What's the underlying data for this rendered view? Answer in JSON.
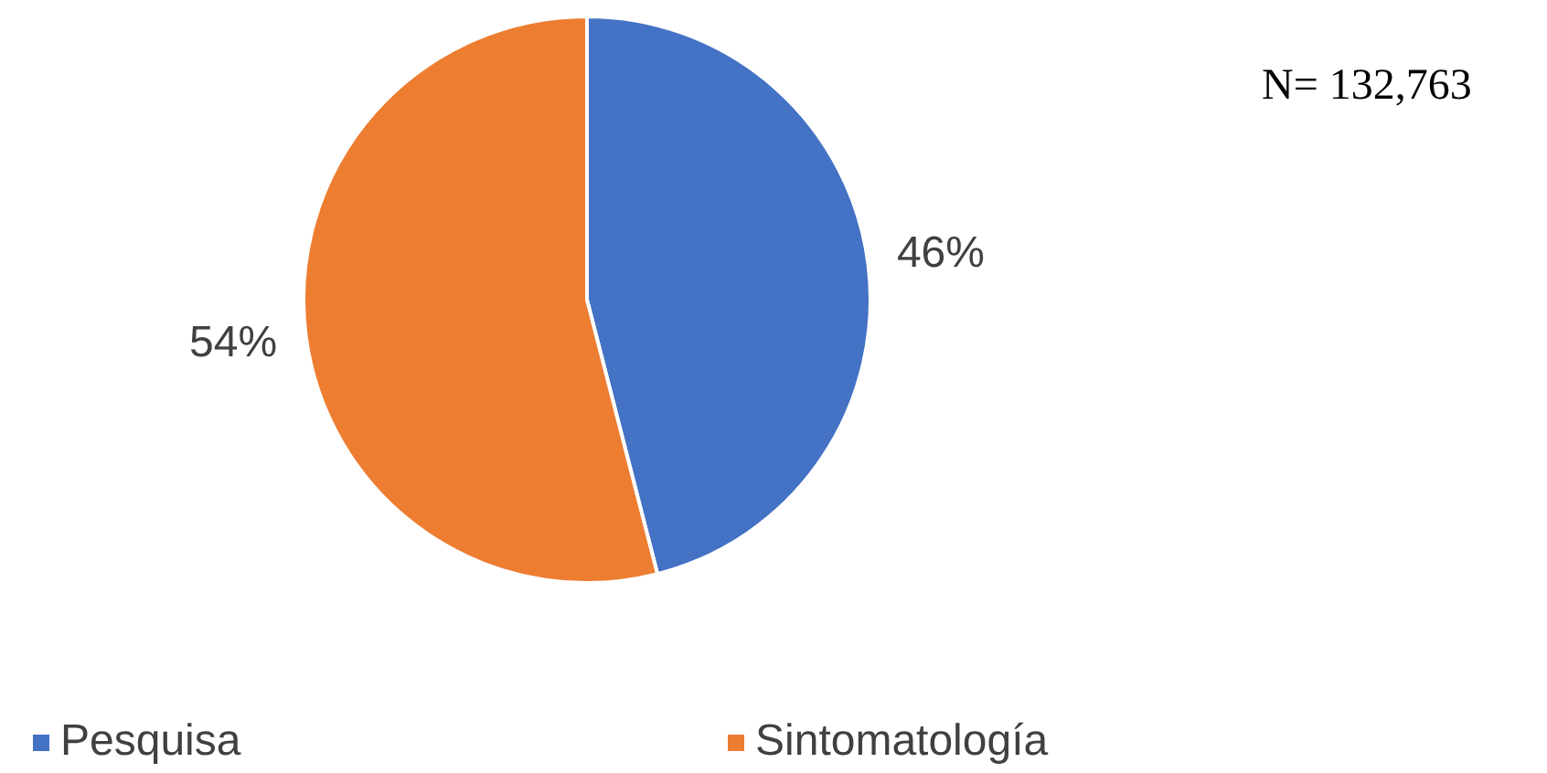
{
  "chart_data": {
    "type": "pie",
    "categories": [
      "Pesquisa",
      "Sintomatología"
    ],
    "values": [
      46,
      54
    ],
    "colors": [
      "#4472c4",
      "#ed7d31"
    ],
    "value_labels": [
      "46%",
      "54%"
    ],
    "legend": "bottom",
    "annotations": [
      "N= 132,763"
    ]
  }
}
